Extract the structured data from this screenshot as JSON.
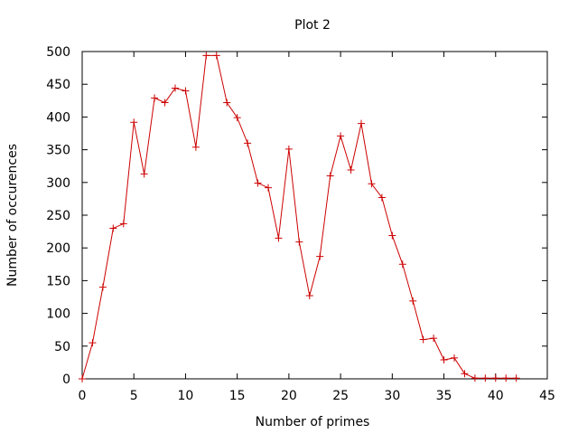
{
  "chart_data": {
    "type": "line",
    "title": "Plot 2",
    "xlabel": "Number of primes",
    "ylabel": "Number of occurences",
    "xlim": [
      0,
      45
    ],
    "ylim": [
      0,
      500
    ],
    "xticks": [
      0,
      5,
      10,
      15,
      20,
      25,
      30,
      35,
      40,
      45
    ],
    "yticks": [
      0,
      50,
      100,
      150,
      200,
      250,
      300,
      350,
      400,
      450,
      500
    ],
    "grid": false,
    "legend": "none",
    "marker": "plus",
    "series": [
      {
        "color": "#cc0000",
        "x": [
          0,
          1,
          2,
          3,
          4,
          5,
          6,
          7,
          8,
          9,
          10,
          11,
          12,
          13,
          14,
          15,
          16,
          17,
          18,
          19,
          20,
          21,
          22,
          23,
          24,
          25,
          26,
          27,
          28,
          29,
          30,
          31,
          32,
          33,
          34,
          35,
          36,
          37,
          38,
          39,
          40,
          41,
          42
        ],
        "y": [
          0,
          55,
          140,
          230,
          237,
          392,
          313,
          429,
          422,
          444,
          440,
          354,
          494,
          494,
          422,
          399,
          360,
          299,
          292,
          215,
          351,
          209,
          127,
          187,
          310,
          371,
          319,
          390,
          298,
          277,
          219,
          175,
          119,
          60,
          62,
          29,
          32,
          8,
          1,
          1,
          1,
          1,
          1
        ]
      }
    ]
  }
}
